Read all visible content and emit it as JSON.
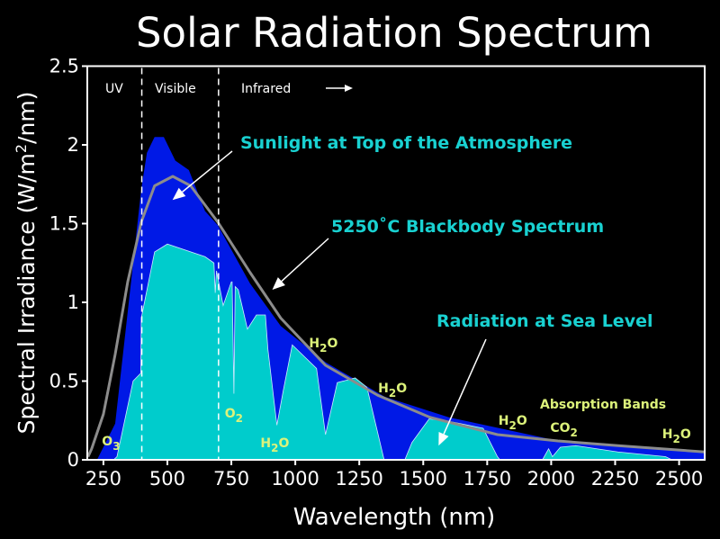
{
  "chart_data": {
    "type": "area",
    "title": "Solar Radiation Spectrum",
    "xlabel": "Wavelength (nm)",
    "ylabel_parts": [
      "Spectral Irradiance (W/m",
      "2",
      "/nm)"
    ],
    "xlim": [
      187,
      2600
    ],
    "ylim": [
      0,
      2.5
    ],
    "x_ticks": [
      250,
      500,
      750,
      1000,
      1250,
      1500,
      1750,
      2000,
      2250,
      2500
    ],
    "y_ticks": [
      0,
      0.5,
      1,
      1.5,
      2,
      2.5
    ],
    "y_tick_labels": [
      "0",
      "0.5",
      "1",
      "1.5",
      "2",
      "2.5"
    ],
    "grid": false,
    "region_dividers": [
      400,
      700
    ],
    "regions": {
      "uv": "UV",
      "visible": "Visible",
      "infrared": "Infrared"
    },
    "infrared_arrow": "right-arrow-icon",
    "colors": {
      "top_of_atmosphere": "#0019e6",
      "sea_level": "#00cccc",
      "blackbody": "#8c8c8c",
      "bands": "#dcf27a",
      "annotations": "#19d1d1",
      "background": "#000000"
    },
    "series": [
      {
        "name": "Sunlight at Top of the Atmosphere",
        "x": [
          225,
          296,
          345,
          398,
          420,
          450,
          486,
          531,
          584,
          647,
          697,
          823,
          943,
          1118,
          1350,
          1600,
          1800,
          2000,
          2300,
          2600
        ],
        "y": [
          0,
          0.23,
          0.94,
          1.72,
          1.95,
          2.05,
          2.05,
          1.9,
          1.84,
          1.58,
          1.49,
          1.12,
          0.85,
          0.62,
          0.4,
          0.27,
          0.2,
          0.13,
          0.08,
          0.05
        ]
      },
      {
        "name": "Radiation at Sea Level",
        "x": [
          290,
          303,
          366,
          396,
          398,
          450,
          500,
          647,
          682,
          687,
          692,
          718,
          750,
          753,
          760,
          765,
          777,
          813,
          848,
          883,
          893,
          928,
          953,
          988,
          1083,
          1118,
          1164,
          1234,
          1280,
          1347,
          1428,
          1456,
          1523,
          1614,
          1734,
          1790,
          1800,
          1966,
          1990,
          2005,
          2036,
          2096,
          2261,
          2447,
          2472
        ],
        "y": [
          0,
          0.02,
          0.5,
          0.55,
          0.9,
          1.32,
          1.37,
          1.29,
          1.25,
          1.06,
          1.2,
          0.98,
          1.13,
          1.13,
          0.42,
          1.1,
          1.08,
          0.83,
          0.92,
          0.92,
          0.7,
          0.22,
          0.44,
          0.73,
          0.58,
          0.16,
          0.49,
          0.52,
          0.46,
          0.0,
          0.0,
          0.11,
          0.26,
          0.24,
          0.2,
          0.02,
          0,
          0,
          0.07,
          0.02,
          0.08,
          0.09,
          0.05,
          0.02,
          0
        ]
      },
      {
        "name": "5250˚C Blackbody Spectrum",
        "x": [
          190,
          204,
          250,
          296,
          345,
          398,
          450,
          521,
          591,
          697,
          823,
          943,
          1118,
          1322,
          1526,
          1790,
          2026,
          2261,
          2600
        ],
        "y": [
          0.02,
          0.07,
          0.29,
          0.67,
          1.13,
          1.51,
          1.74,
          1.8,
          1.74,
          1.51,
          1.19,
          0.9,
          0.6,
          0.41,
          0.27,
          0.16,
          0.12,
          0.09,
          0.05
        ]
      }
    ],
    "annotations": [
      {
        "text": "Sunlight at Top of the Atmosphere",
        "arrow_to": [
          520,
          1.65
        ]
      },
      {
        "text": "5250˚C Blackbody Spectrum",
        "arrow_to": [
          910,
          1.08
        ]
      },
      {
        "text": "Radiation at Sea Level",
        "arrow_to": [
          1560,
          0.09
        ]
      }
    ],
    "absorption_labels": [
      {
        "main": "O",
        "sub": "3",
        "x": 280
      },
      {
        "main": "O",
        "sub": "2",
        "x": 760
      },
      {
        "main": "H",
        "sub": "2",
        "tail": "O",
        "x": 920
      },
      {
        "main": "H",
        "sub": "2",
        "tail": "O",
        "x": 1110
      },
      {
        "main": "H",
        "sub": "2",
        "tail": "O",
        "x": 1380
      },
      {
        "main": "H",
        "sub": "2",
        "tail": "O",
        "x": 1850
      },
      {
        "main": "CO",
        "sub": "2",
        "x": 2050
      },
      {
        "main": "H",
        "sub": "2",
        "tail": "O",
        "x": 2490
      }
    ],
    "absorption_bands_label": "Absorption Bands"
  }
}
